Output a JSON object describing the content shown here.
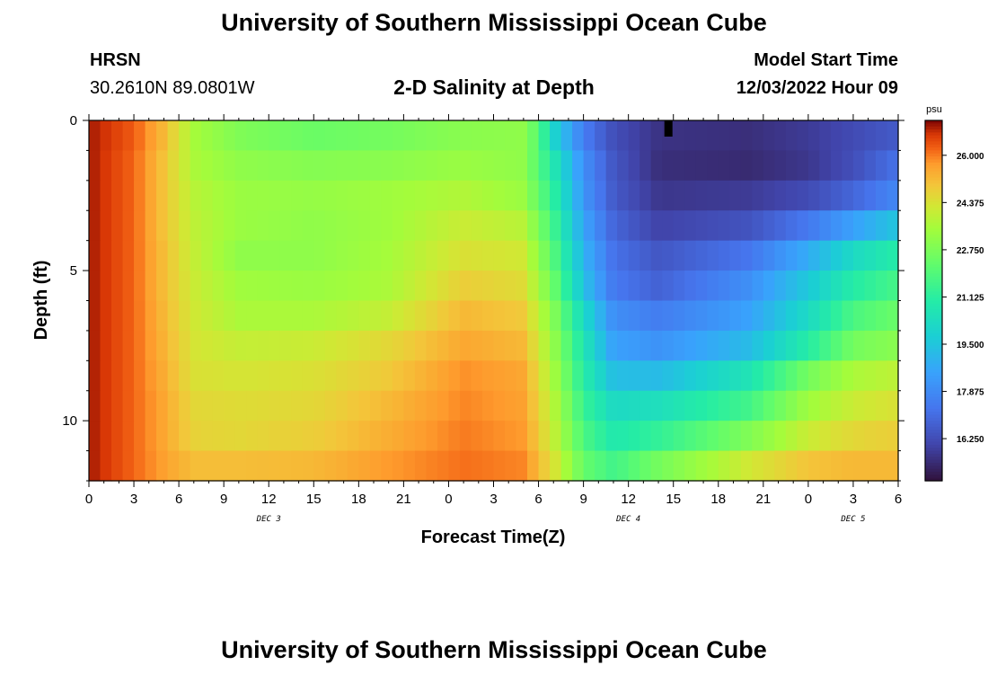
{
  "header": {
    "title": "University of Southern Mississippi Ocean Cube",
    "station": "HRSN",
    "coords": "30.2610N  89.0801W",
    "chart_title": "2-D Salinity at Depth",
    "start_label": "Model Start Time",
    "start_value": "12/03/2022 Hour 09"
  },
  "footer": {
    "title": "University of Southern Mississippi Ocean Cube"
  },
  "chart_data": {
    "type": "heatmap",
    "title": "2-D Salinity at Depth",
    "xlabel": "Forecast Time(Z)",
    "ylabel": "Depth (ft)",
    "x_hours_range": [
      0,
      54
    ],
    "x_ticks": [
      "0",
      "3",
      "6",
      "9",
      "12",
      "15",
      "18",
      "21",
      "0",
      "3",
      "6",
      "9",
      "12",
      "15",
      "18",
      "21",
      "0",
      "3",
      "6"
    ],
    "day_labels": [
      {
        "label": "DEC 3",
        "hour": 12
      },
      {
        "label": "DEC 4",
        "hour": 36
      },
      {
        "label": "DEC 5",
        "hour": 51
      }
    ],
    "ylim": [
      0,
      12
    ],
    "y_ticks": [
      "0",
      "5",
      "10"
    ],
    "y_tick_values": [
      0,
      5,
      10
    ],
    "colorbar": {
      "unit": "psu",
      "min": 14.8,
      "max": 27.2,
      "labels": [
        "26.000",
        "24.375",
        "22.750",
        "21.125",
        "19.500",
        "17.875",
        "16.250"
      ],
      "label_values": [
        26.0,
        24.375,
        22.75,
        21.125,
        19.5,
        17.875,
        16.25
      ]
    },
    "depth_rows": 12,
    "time_columns": 72,
    "profiles": [
      {
        "depth": 0.5,
        "knots": [
          [
            0,
            27.0
          ],
          [
            3,
            26.3
          ],
          [
            5,
            25.2
          ],
          [
            7,
            23.5
          ],
          [
            10,
            22.8
          ],
          [
            15,
            22.4
          ],
          [
            20,
            22.6
          ],
          [
            25,
            23.0
          ],
          [
            29,
            23.1
          ],
          [
            30,
            22.0
          ],
          [
            31,
            20.0
          ],
          [
            33,
            17.5
          ],
          [
            35,
            16.3
          ],
          [
            38,
            15.6
          ],
          [
            44,
            15.5
          ],
          [
            48,
            15.8
          ],
          [
            51,
            16.2
          ],
          [
            54,
            16.6
          ]
        ]
      },
      {
        "depth": 1.5,
        "knots": [
          [
            0,
            27.0
          ],
          [
            3,
            26.2
          ],
          [
            5,
            25.0
          ],
          [
            7,
            23.6
          ],
          [
            10,
            23.1
          ],
          [
            15,
            22.9
          ],
          [
            20,
            23.0
          ],
          [
            25,
            23.3
          ],
          [
            29,
            23.1
          ],
          [
            31,
            20.8
          ],
          [
            33,
            18.0
          ],
          [
            35,
            16.5
          ],
          [
            38,
            15.5
          ],
          [
            44,
            15.4
          ],
          [
            48,
            15.7
          ],
          [
            51,
            16.3
          ],
          [
            54,
            17.2
          ]
        ]
      },
      {
        "depth": 2.5,
        "knots": [
          [
            0,
            27.0
          ],
          [
            3,
            26.2
          ],
          [
            5,
            25.0
          ],
          [
            7,
            23.8
          ],
          [
            10,
            23.3
          ],
          [
            15,
            23.2
          ],
          [
            20,
            23.4
          ],
          [
            25,
            23.7
          ],
          [
            29,
            23.3
          ],
          [
            31,
            21.2
          ],
          [
            33,
            18.2
          ],
          [
            35,
            16.6
          ],
          [
            38,
            15.7
          ],
          [
            44,
            15.8
          ],
          [
            48,
            16.2
          ],
          [
            51,
            16.9
          ],
          [
            54,
            17.8
          ]
        ]
      },
      {
        "depth": 3.5,
        "knots": [
          [
            0,
            27.0
          ],
          [
            3,
            26.2
          ],
          [
            5,
            25.0
          ],
          [
            7,
            23.9
          ],
          [
            10,
            23.3
          ],
          [
            15,
            23.1
          ],
          [
            20,
            23.4
          ],
          [
            25,
            24.1
          ],
          [
            29,
            23.8
          ],
          [
            31,
            21.6
          ],
          [
            33,
            18.6
          ],
          [
            35,
            16.9
          ],
          [
            38,
            16.0
          ],
          [
            44,
            16.4
          ],
          [
            48,
            17.4
          ],
          [
            51,
            18.5
          ],
          [
            54,
            19.5
          ]
        ]
      },
      {
        "depth": 4.5,
        "knots": [
          [
            0,
            27.0
          ],
          [
            3,
            26.2
          ],
          [
            5,
            25.1
          ],
          [
            7,
            24.0
          ],
          [
            10,
            23.1
          ],
          [
            15,
            23.1
          ],
          [
            20,
            23.5
          ],
          [
            25,
            24.4
          ],
          [
            29,
            24.2
          ],
          [
            31,
            22.0
          ],
          [
            33,
            19.0
          ],
          [
            35,
            17.2
          ],
          [
            38,
            16.5
          ],
          [
            44,
            17.3
          ],
          [
            48,
            18.8
          ],
          [
            51,
            20.2
          ],
          [
            54,
            21.0
          ]
        ]
      },
      {
        "depth": 5.5,
        "knots": [
          [
            0,
            27.0
          ],
          [
            3,
            26.2
          ],
          [
            5,
            25.1
          ],
          [
            7,
            24.1
          ],
          [
            10,
            23.4
          ],
          [
            15,
            23.3
          ],
          [
            20,
            23.6
          ],
          [
            25,
            24.8
          ],
          [
            29,
            24.5
          ],
          [
            31,
            22.4
          ],
          [
            33,
            19.4
          ],
          [
            35,
            17.4
          ],
          [
            38,
            16.8
          ],
          [
            44,
            18.0
          ],
          [
            48,
            19.6
          ],
          [
            51,
            21.0
          ],
          [
            54,
            21.7
          ]
        ]
      },
      {
        "depth": 6.5,
        "knots": [
          [
            0,
            27.0
          ],
          [
            3,
            26.2
          ],
          [
            5,
            25.2
          ],
          [
            7,
            24.2
          ],
          [
            10,
            23.6
          ],
          [
            15,
            23.6
          ],
          [
            20,
            24.0
          ],
          [
            25,
            25.2
          ],
          [
            29,
            24.9
          ],
          [
            31,
            22.9
          ],
          [
            33,
            20.2
          ],
          [
            35,
            18.0
          ],
          [
            38,
            17.5
          ],
          [
            44,
            18.5
          ],
          [
            48,
            20.2
          ],
          [
            51,
            21.8
          ],
          [
            54,
            22.4
          ]
        ]
      },
      {
        "depth": 7.5,
        "knots": [
          [
            0,
            27.0
          ],
          [
            3,
            26.2
          ],
          [
            5,
            25.3
          ],
          [
            7,
            24.3
          ],
          [
            10,
            24.0
          ],
          [
            15,
            24.1
          ],
          [
            20,
            24.6
          ],
          [
            25,
            25.5
          ],
          [
            29,
            25.2
          ],
          [
            31,
            23.2
          ],
          [
            33,
            20.7
          ],
          [
            35,
            18.5
          ],
          [
            38,
            18.1
          ],
          [
            44,
            19.2
          ],
          [
            48,
            21.0
          ],
          [
            51,
            22.6
          ],
          [
            54,
            23.0
          ]
        ]
      },
      {
        "depth": 8.5,
        "knots": [
          [
            0,
            27.0
          ],
          [
            3,
            26.2
          ],
          [
            5,
            25.4
          ],
          [
            7,
            24.4
          ],
          [
            10,
            24.3
          ],
          [
            15,
            24.4
          ],
          [
            20,
            24.9
          ],
          [
            25,
            25.8
          ],
          [
            29,
            25.5
          ],
          [
            31,
            23.5
          ],
          [
            33,
            21.0
          ],
          [
            35,
            19.3
          ],
          [
            38,
            19.2
          ],
          [
            44,
            20.6
          ],
          [
            48,
            22.6
          ],
          [
            51,
            23.6
          ],
          [
            54,
            23.9
          ]
        ]
      },
      {
        "depth": 9.5,
        "knots": [
          [
            0,
            27.0
          ],
          [
            3,
            26.2
          ],
          [
            5,
            25.5
          ],
          [
            7,
            24.6
          ],
          [
            10,
            24.5
          ],
          [
            15,
            24.6
          ],
          [
            20,
            25.2
          ],
          [
            25,
            25.9
          ],
          [
            29,
            25.6
          ],
          [
            31,
            23.8
          ],
          [
            33,
            21.4
          ],
          [
            35,
            20.2
          ],
          [
            38,
            20.4
          ],
          [
            44,
            21.6
          ],
          [
            48,
            23.4
          ],
          [
            51,
            24.1
          ],
          [
            54,
            24.4
          ]
        ]
      },
      {
        "depth": 10.5,
        "knots": [
          [
            0,
            27.0
          ],
          [
            3,
            26.2
          ],
          [
            5,
            25.5
          ],
          [
            7,
            24.7
          ],
          [
            10,
            24.6
          ],
          [
            15,
            24.8
          ],
          [
            20,
            25.4
          ],
          [
            25,
            26.0
          ],
          [
            29,
            25.7
          ],
          [
            31,
            24.0
          ],
          [
            33,
            21.8
          ],
          [
            35,
            20.8
          ],
          [
            38,
            21.3
          ],
          [
            44,
            22.8
          ],
          [
            48,
            24.1
          ],
          [
            51,
            24.6
          ],
          [
            54,
            24.8
          ]
        ]
      },
      {
        "depth": 11.5,
        "knots": [
          [
            0,
            27.0
          ],
          [
            3,
            26.2
          ],
          [
            5,
            25.6
          ],
          [
            7,
            25.1
          ],
          [
            10,
            25.1
          ],
          [
            15,
            25.2
          ],
          [
            20,
            25.7
          ],
          [
            25,
            26.1
          ],
          [
            29,
            25.9
          ],
          [
            31,
            24.4
          ],
          [
            33,
            22.3
          ],
          [
            35,
            21.6
          ],
          [
            38,
            22.6
          ],
          [
            44,
            24.2
          ],
          [
            48,
            25.0
          ],
          [
            51,
            25.2
          ],
          [
            54,
            25.2
          ]
        ]
      }
    ]
  }
}
